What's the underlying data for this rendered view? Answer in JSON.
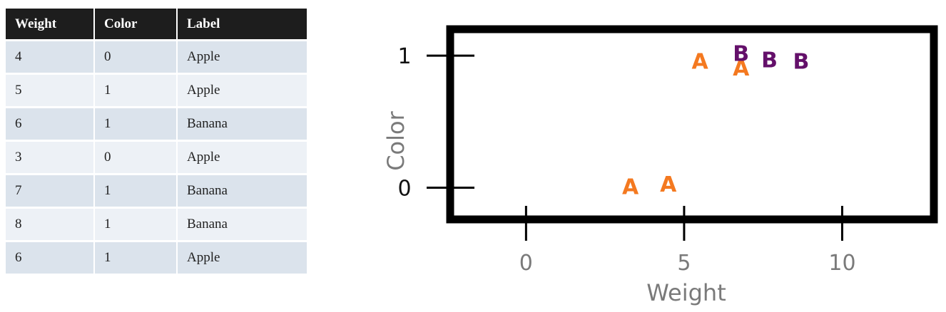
{
  "table": {
    "headers": [
      "Weight",
      "Color",
      "Label"
    ],
    "rows": [
      [
        "4",
        "0",
        "Apple"
      ],
      [
        "5",
        "1",
        "Apple"
      ],
      [
        "6",
        "1",
        "Banana"
      ],
      [
        "3",
        "0",
        "Apple"
      ],
      [
        "7",
        "1",
        "Banana"
      ],
      [
        "8",
        "1",
        "Banana"
      ],
      [
        "6",
        "1",
        "Apple"
      ]
    ]
  },
  "chart_data": {
    "type": "scatter",
    "title": "",
    "xlabel": "Weight",
    "ylabel": "Color",
    "xlim": [
      -2.4,
      12.9
    ],
    "ylim": [
      -0.24,
      1.2
    ],
    "x_ticks": [
      0,
      5,
      10
    ],
    "y_ticks": [
      0,
      1
    ],
    "grid": false,
    "series": [
      {
        "marker": "A",
        "color": "#f47920",
        "points": [
          {
            "x": 3.3,
            "y": 0.01
          },
          {
            "x": 4.5,
            "y": 0.03
          },
          {
            "x": 5.5,
            "y": 0.96
          },
          {
            "x": 6.8,
            "y": 0.91
          }
        ]
      },
      {
        "marker": "B",
        "color": "#64106a",
        "points": [
          {
            "x": 6.8,
            "y": 1.02
          },
          {
            "x": 7.7,
            "y": 0.97
          },
          {
            "x": 8.7,
            "y": 0.96
          }
        ]
      }
    ]
  }
}
